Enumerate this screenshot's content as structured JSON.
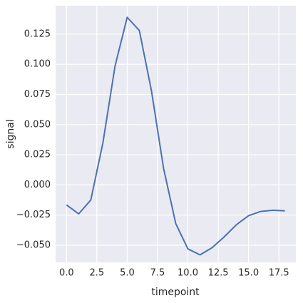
{
  "chart_data": {
    "type": "line",
    "x_label": "timepoint",
    "y_label": "signal",
    "x": [
      0,
      1,
      2,
      3,
      4,
      5,
      6,
      7,
      8,
      9,
      10,
      11,
      12,
      13,
      14,
      15,
      16,
      17,
      18
    ],
    "series": [
      {
        "color": "#4c72b0",
        "values": [
          -0.0166,
          -0.024,
          -0.0125,
          0.035,
          0.0987,
          0.139,
          0.128,
          0.078,
          0.0136,
          -0.032,
          -0.053,
          -0.058,
          -0.052,
          -0.043,
          -0.033,
          -0.0255,
          -0.022,
          -0.021,
          -0.0215
        ]
      }
    ],
    "xlim": [
      -0.9,
      18.9
    ],
    "ylim": [
      -0.0642,
      0.1486
    ],
    "xticks": [
      {
        "value": 0,
        "label": "0.0"
      },
      {
        "value": 2.5,
        "label": "2.5"
      },
      {
        "value": 5,
        "label": "5.0"
      },
      {
        "value": 7.5,
        "label": "7.5"
      },
      {
        "value": 10,
        "label": "10.0"
      },
      {
        "value": 12.5,
        "label": "12.5"
      },
      {
        "value": 15,
        "label": "15.0"
      },
      {
        "value": 17.5,
        "label": "17.5"
      }
    ],
    "yticks": [
      {
        "value": -0.05,
        "label": "−0.050"
      },
      {
        "value": -0.025,
        "label": "−0.025"
      },
      {
        "value": 0,
        "label": "0.000"
      },
      {
        "value": 0.025,
        "label": "0.025"
      },
      {
        "value": 0.05,
        "label": "0.050"
      },
      {
        "value": 0.075,
        "label": "0.075"
      },
      {
        "value": 0.1,
        "label": "0.100"
      },
      {
        "value": 0.125,
        "label": "0.125"
      }
    ],
    "grid": true,
    "background": "#eaeaf2"
  }
}
